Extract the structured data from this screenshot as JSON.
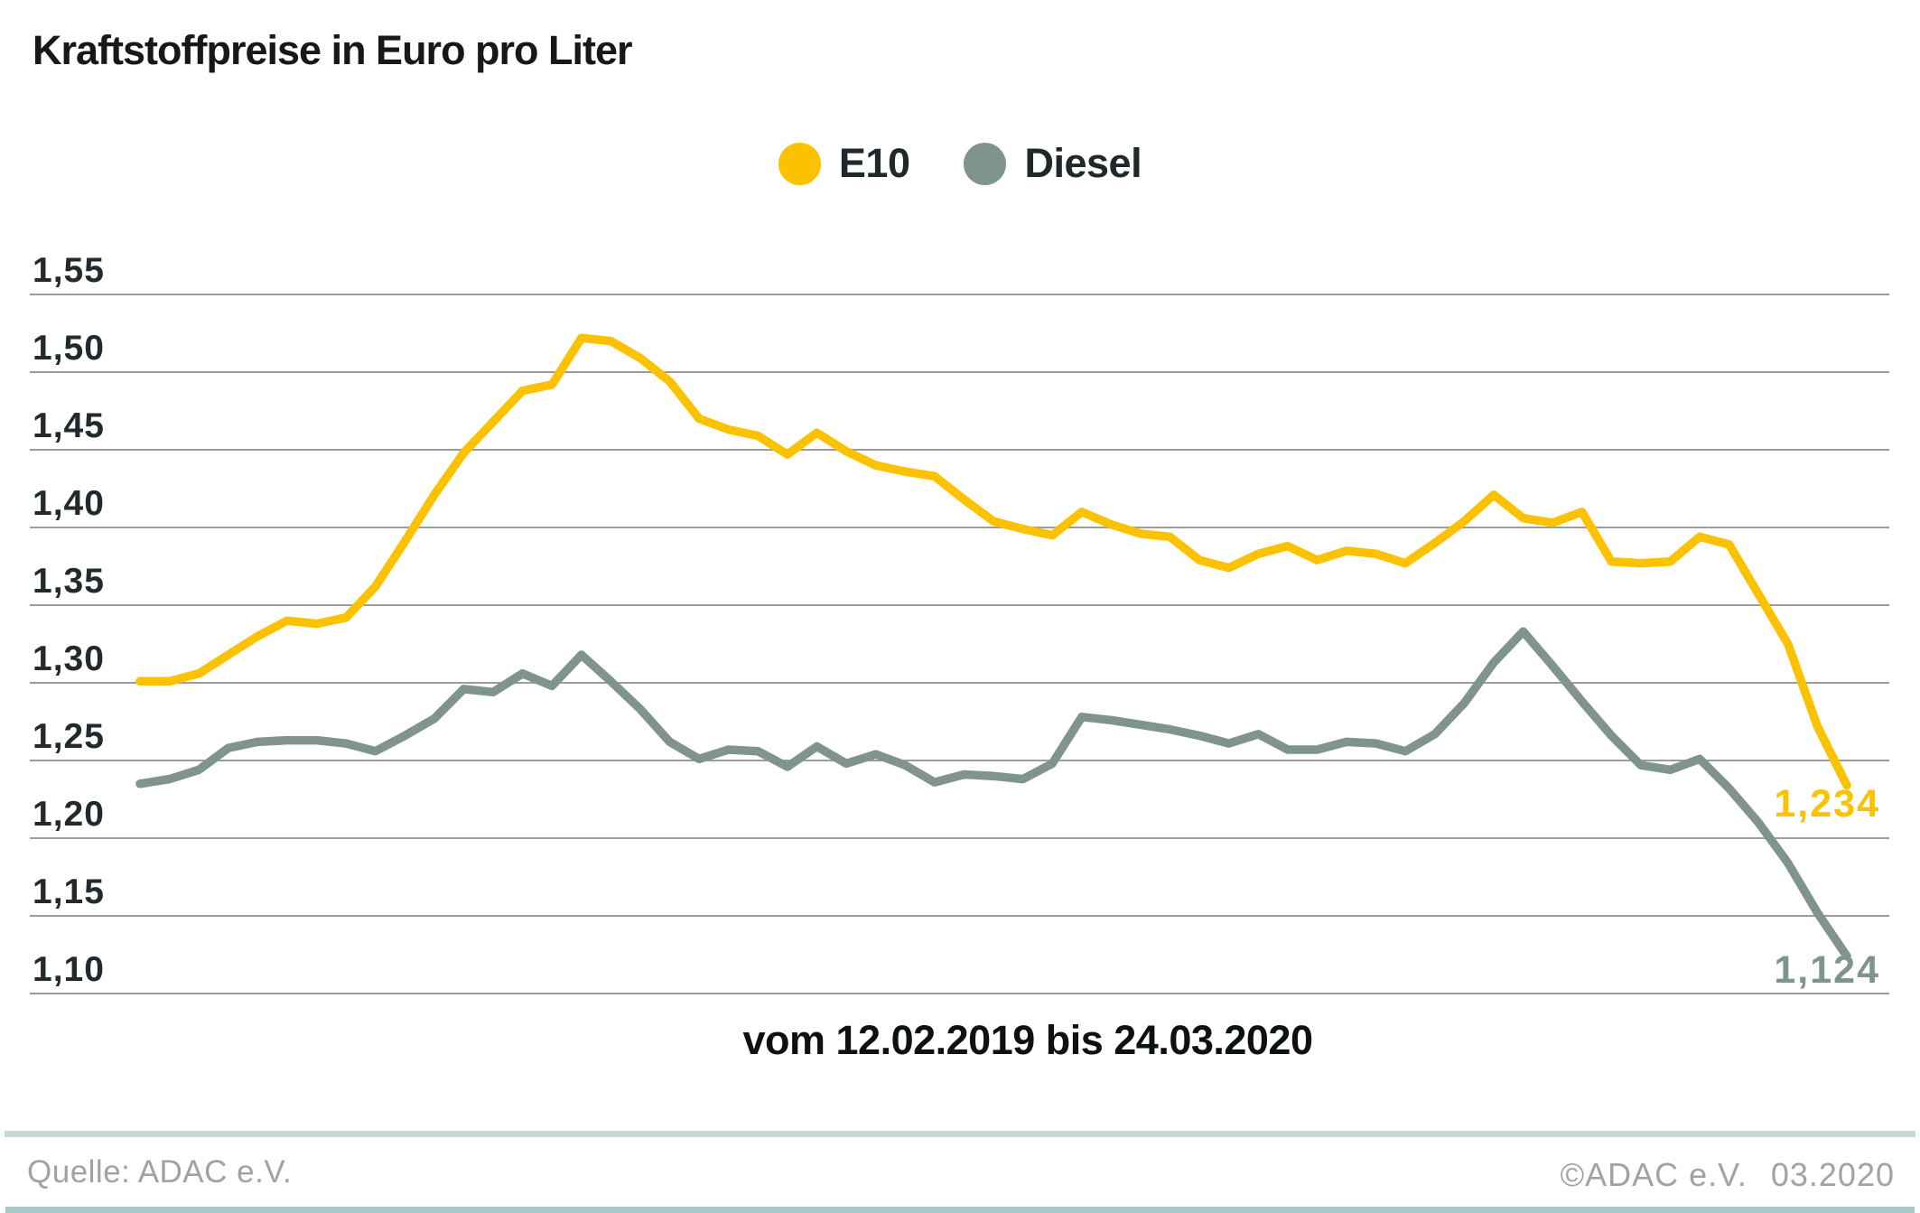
{
  "title": "Kraftstoffpreise in Euro pro Liter",
  "legend": [
    {
      "id": "e10",
      "label": "E10",
      "color": "#fcc200"
    },
    {
      "id": "diesel",
      "label": "Diesel",
      "color": "#7f948e"
    }
  ],
  "chart_data": {
    "type": "line",
    "title": "Kraftstoffpreise in Euro pro Liter",
    "x_caption": "vom 12.02.2019 bis 24.03.2020",
    "x_range": {
      "start": "12.02.2019",
      "end": "24.03.2020",
      "interval": "weekly",
      "n_points": 59
    },
    "grid": true,
    "legend_position": "top-center",
    "ylim": [
      1.1,
      1.55
    ],
    "y_axis": {
      "tick_values": [
        1.55,
        1.5,
        1.45,
        1.4,
        1.35,
        1.3,
        1.25,
        1.2,
        1.15,
        1.1
      ],
      "tick_labels": [
        "1,55",
        "1,50",
        "1,45",
        "1,40",
        "1,35",
        "1,30",
        "1,25",
        "1,20",
        "1,15",
        "1,10"
      ]
    },
    "series": [
      {
        "name": "E10",
        "color": "#fcc200",
        "end_label": "1,234",
        "end_value": 1.234,
        "values": [
          1.301,
          1.301,
          1.306,
          1.318,
          1.33,
          1.34,
          1.338,
          1.342,
          1.362,
          1.391,
          1.421,
          1.448,
          1.468,
          1.488,
          1.492,
          1.522,
          1.52,
          1.509,
          1.494,
          1.47,
          1.463,
          1.459,
          1.447,
          1.461,
          1.449,
          1.44,
          1.436,
          1.433,
          1.418,
          1.404,
          1.399,
          1.395,
          1.41,
          1.402,
          1.396,
          1.394,
          1.379,
          1.374,
          1.383,
          1.388,
          1.379,
          1.385,
          1.383,
          1.377,
          1.39,
          1.404,
          1.421,
          1.406,
          1.403,
          1.41,
          1.378,
          1.377,
          1.378,
          1.394,
          1.389,
          1.357,
          1.325,
          1.272,
          1.234
        ]
      },
      {
        "name": "Diesel",
        "color": "#7f948e",
        "end_label": "1,124",
        "end_value": 1.124,
        "values": [
          1.235,
          1.238,
          1.244,
          1.258,
          1.262,
          1.263,
          1.263,
          1.261,
          1.256,
          1.266,
          1.277,
          1.296,
          1.294,
          1.306,
          1.298,
          1.318,
          1.301,
          1.283,
          1.262,
          1.251,
          1.257,
          1.256,
          1.246,
          1.259,
          1.248,
          1.254,
          1.247,
          1.236,
          1.241,
          1.24,
          1.238,
          1.248,
          1.278,
          1.276,
          1.273,
          1.27,
          1.266,
          1.261,
          1.267,
          1.257,
          1.257,
          1.262,
          1.261,
          1.256,
          1.267,
          1.287,
          1.313,
          1.333,
          1.311,
          1.288,
          1.266,
          1.247,
          1.244,
          1.251,
          1.232,
          1.21,
          1.184,
          1.152,
          1.124
        ]
      }
    ]
  },
  "footer": {
    "source": "Quelle: ADAC e.V.",
    "copyright": "©ADAC e.V.",
    "date": "03.2020"
  },
  "colors": {
    "background": "#ffffff",
    "grid_line": "#9c9c9c",
    "axis_text": "#222a2d",
    "title_text": "#15191b",
    "caption_text": "#0d1112",
    "footer_text": "#9ea4a2",
    "footer_divider": "#c9d8d2",
    "bottom_bar": "#a6c9c7"
  }
}
